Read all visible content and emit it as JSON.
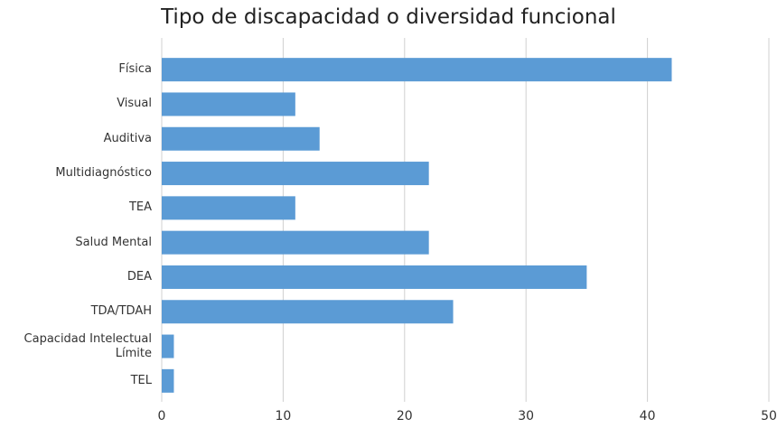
{
  "chart_data": {
    "type": "bar",
    "orientation": "horizontal",
    "title": "Tipo de discapacidad o diversidad funcional",
    "categories": [
      "Física",
      "Visual",
      "Auditiva",
      "Multidiagnóstico",
      "TEA",
      "Salud Mental",
      "DEA",
      "TDA/TDAH",
      "Capacidad Intelectual Límite",
      "TEL"
    ],
    "values": [
      42,
      11,
      13,
      22,
      11,
      22,
      35,
      24,
      1,
      1
    ],
    "color": "#5b9bd5",
    "xlim": [
      0,
      50
    ],
    "xticks": [
      0,
      10,
      20,
      30,
      40,
      50
    ],
    "grid": true
  }
}
